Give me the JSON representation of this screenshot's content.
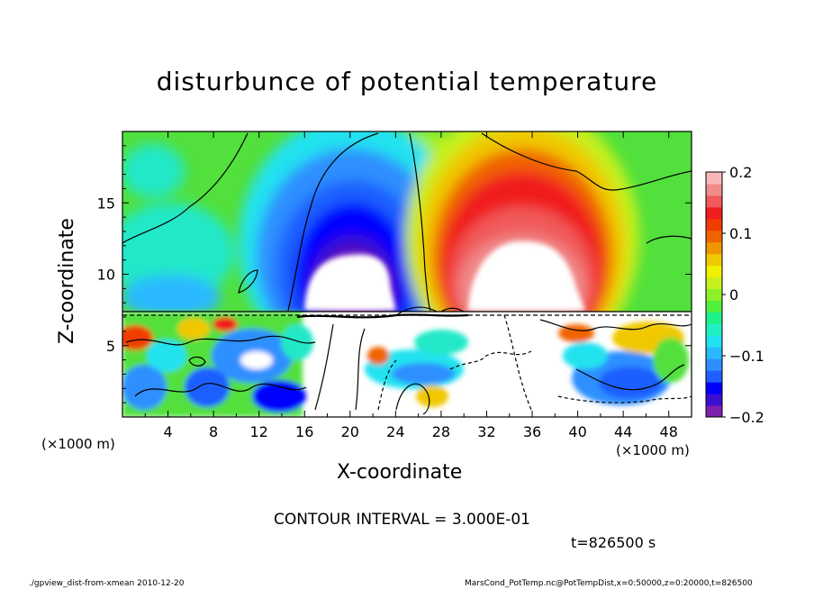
{
  "title": "disturbunce of potential temperature",
  "xlabel": "X-coordinate",
  "ylabel": "Z-coordinate",
  "x_unit_left": "(×1000 m)",
  "x_unit_right": "(×1000 m)",
  "contour_interval": "CONTOUR INTERVAL = 3.000E-01",
  "time_label": "t=826500 s",
  "footer_left": "./gpview_dist-from-xmean  2010-12-20",
  "footer_right": "MarsCond_PotTemp.nc@PotTempDist,x=0:50000,z=0:20000,t=826500",
  "chart_data": {
    "type": "heatmap",
    "title": "disturbunce of potential temperature",
    "xlabel": "X-coordinate",
    "ylabel": "Z-coordinate",
    "x_ticks": [
      4,
      8,
      12,
      16,
      20,
      24,
      28,
      32,
      36,
      40,
      44,
      48
    ],
    "y_ticks": [
      5,
      10,
      15
    ],
    "xlim": [
      0,
      50
    ],
    "ylim": [
      0,
      20
    ],
    "colorbar": {
      "range": [
        -0.2,
        0.2
      ],
      "ticks": [
        {
          "value": 0.2,
          "label": "0.2"
        },
        {
          "value": 0.1,
          "label": "0.1"
        },
        {
          "value": 0,
          "label": "0"
        },
        {
          "value": -0.1,
          "label": "−0.1"
        },
        {
          "value": -0.2,
          "label": "−0.2"
        }
      ],
      "colors": [
        "#7f1fb0",
        "#3b0fd0",
        "#0000ff",
        "#1f5fff",
        "#2f8fff",
        "#29b9ff",
        "#22e2f0",
        "#22f0c0",
        "#1ef08a",
        "#52f03c",
        "#8cf02a",
        "#c6f01e",
        "#f0f000",
        "#f0c800",
        "#f09600",
        "#f06400",
        "#f03c00",
        "#f01e1e",
        "#f05a5a",
        "#f08c8c",
        "#f8b8b8"
      ]
    },
    "regions": [
      {
        "label": "background upper",
        "x": [
          0,
          50
        ],
        "z": [
          7.5,
          20
        ],
        "value": 0.0
      },
      {
        "label": "cold anomaly",
        "x": [
          13,
          27
        ],
        "z": [
          7.5,
          20
        ],
        "value": -0.2
      },
      {
        "label": "warm anomaly",
        "x": [
          28,
          44
        ],
        "z": [
          7.5,
          20
        ],
        "value": 0.2
      },
      {
        "label": "cyan region left",
        "x": [
          0,
          10
        ],
        "z": [
          8,
          14
        ],
        "value": -0.08
      },
      {
        "label": "turbulent layer",
        "x": [
          0,
          50
        ],
        "z": [
          0,
          7.5
        ],
        "value": 0.0
      }
    ]
  }
}
